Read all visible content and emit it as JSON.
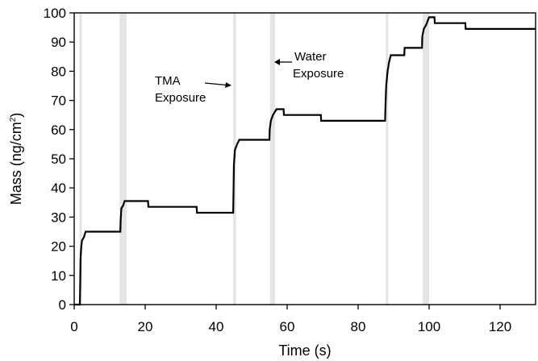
{
  "chart_data": {
    "type": "line",
    "title": "",
    "xlabel": "Time (s)",
    "ylabel": "Mass (ng/cm",
    "ylabel_superscript": "2",
    "ylabel_suffix": ")",
    "xlim": [
      0,
      130
    ],
    "ylim": [
      0,
      100
    ],
    "x_ticks": [
      0,
      20,
      40,
      60,
      80,
      100,
      120
    ],
    "y_ticks": [
      0,
      10,
      20,
      30,
      40,
      50,
      60,
      70,
      80,
      90,
      100
    ],
    "grid": false,
    "line_color": "#000000",
    "band_color": "#e4e4e4",
    "exposure_bands": [
      [
        1.5,
        2.0
      ],
      [
        12.8,
        14.8
      ],
      [
        44.8,
        45.6
      ],
      [
        55.2,
        56.6
      ],
      [
        87.8,
        88.5
      ],
      [
        98.2,
        100.0
      ]
    ],
    "series": [
      {
        "points": [
          [
            0,
            0
          ],
          [
            1.6,
            0
          ],
          [
            1.7,
            8
          ],
          [
            1.8,
            16
          ],
          [
            2.0,
            20
          ],
          [
            2.2,
            22
          ],
          [
            2.7,
            23
          ],
          [
            3.2,
            25
          ],
          [
            13.0,
            25
          ],
          [
            13.1,
            29
          ],
          [
            13.3,
            33
          ],
          [
            13.8,
            34
          ],
          [
            14.2,
            35.5
          ],
          [
            20.8,
            35.5
          ],
          [
            20.9,
            33.5
          ],
          [
            34.5,
            33.5
          ],
          [
            34.6,
            31.5
          ],
          [
            44.8,
            31.5
          ],
          [
            44.9,
            40
          ],
          [
            45.0,
            48
          ],
          [
            45.3,
            53
          ],
          [
            45.9,
            55
          ],
          [
            46.5,
            56.5
          ],
          [
            55.0,
            56.5
          ],
          [
            55.1,
            60
          ],
          [
            55.4,
            63
          ],
          [
            56.0,
            65
          ],
          [
            57.0,
            67
          ],
          [
            59.0,
            67
          ],
          [
            59.1,
            65
          ],
          [
            69.5,
            65
          ],
          [
            69.6,
            63
          ],
          [
            87.6,
            63
          ],
          [
            87.7,
            68
          ],
          [
            87.9,
            75
          ],
          [
            88.3,
            80
          ],
          [
            88.7,
            83
          ],
          [
            89.2,
            85.5
          ],
          [
            93.0,
            85.5
          ],
          [
            93.1,
            88
          ],
          [
            98.0,
            88
          ],
          [
            98.1,
            92
          ],
          [
            98.5,
            94.5
          ],
          [
            99.2,
            96
          ],
          [
            100.0,
            98.5
          ],
          [
            101.5,
            98.5
          ],
          [
            101.6,
            96.5
          ],
          [
            110.2,
            96.5
          ],
          [
            110.3,
            94.5
          ],
          [
            130,
            94.5
          ]
        ]
      }
    ],
    "annotations": [
      {
        "text_lines": [
          "TMA",
          "Exposure"
        ],
        "arrow_direction": "right",
        "anchor": [
          45,
          75
        ]
      },
      {
        "text_lines": [
          "Water",
          "Exposure"
        ],
        "arrow_direction": "left",
        "anchor": [
          56,
          83
        ]
      }
    ]
  }
}
